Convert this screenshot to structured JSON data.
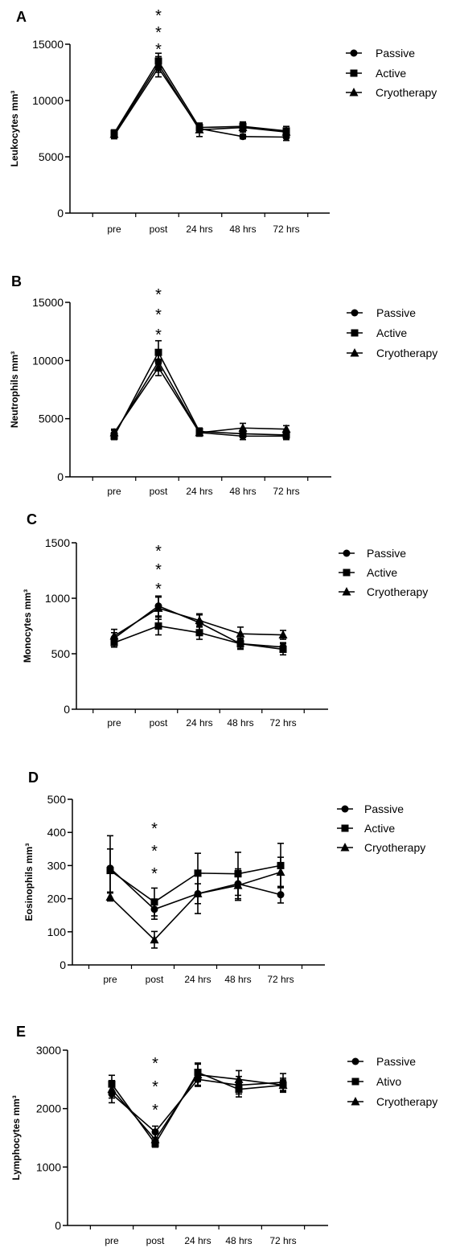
{
  "categories": [
    "pre",
    "post",
    "24 hrs",
    "48 hrs",
    "72 hrs"
  ],
  "chart_data": [
    {
      "type": "line",
      "panel": "A",
      "ylabel": "Leukocytes mm³",
      "ylim": [
        0,
        15000
      ],
      "yticks": [
        0,
        5000,
        10000,
        15000
      ],
      "categories": [
        "pre",
        "post",
        "24 hrs",
        "48 hrs",
        "72 hrs"
      ],
      "series": [
        {
          "name": "Passive",
          "marker": "circle",
          "values": [
            6900,
            12900,
            7500,
            6800,
            6750
          ],
          "error": [
            300,
            800,
            300,
            200,
            300
          ]
        },
        {
          "name": "Active",
          "marker": "square",
          "values": [
            7100,
            13500,
            7600,
            7700,
            7300
          ],
          "error": [
            300,
            700,
            300,
            400,
            400
          ]
        },
        {
          "name": "Cryotherapy",
          "marker": "triangle",
          "values": [
            7000,
            13200,
            7400,
            7600,
            7200
          ],
          "error": [
            300,
            700,
            600,
            400,
            300
          ]
        }
      ],
      "significance": {
        "category": "post",
        "label": "***"
      },
      "legend": "right"
    },
    {
      "type": "line",
      "panel": "B",
      "ylabel": "Neutrophils mm³",
      "ylim": [
        0,
        15000
      ],
      "yticks": [
        0,
        5000,
        10000,
        15000
      ],
      "categories": [
        "pre",
        "post",
        "24 hrs",
        "48 hrs",
        "72 hrs"
      ],
      "series": [
        {
          "name": "Passive",
          "marker": "circle",
          "values": [
            3700,
            9900,
            3800,
            3500,
            3500
          ],
          "error": [
            300,
            800,
            300,
            300,
            300
          ]
        },
        {
          "name": "Active",
          "marker": "square",
          "values": [
            3500,
            10700,
            3900,
            3700,
            3600
          ],
          "error": [
            300,
            1000,
            300,
            300,
            300
          ]
        },
        {
          "name": "Cryotherapy",
          "marker": "triangle",
          "values": [
            3800,
            9400,
            3800,
            4200,
            4100
          ],
          "error": [
            300,
            700,
            300,
            400,
            300
          ]
        }
      ],
      "significance": {
        "category": "post",
        "label": "***"
      },
      "legend": "right"
    },
    {
      "type": "line",
      "panel": "C",
      "ylabel": "Monocytes mm³",
      "ylim": [
        0,
        1500
      ],
      "yticks": [
        0,
        500,
        1000,
        1500
      ],
      "categories": [
        "pre",
        "post",
        "24 hrs",
        "48 hrs",
        "72 hrs"
      ],
      "series": [
        {
          "name": "Passive",
          "marker": "circle",
          "values": [
            640,
            930,
            780,
            590,
            560
          ],
          "error": [
            50,
            90,
            70,
            40,
            40
          ]
        },
        {
          "name": "Active",
          "marker": "square",
          "values": [
            600,
            750,
            690,
            590,
            540
          ],
          "error": [
            40,
            80,
            60,
            50,
            50
          ]
        },
        {
          "name": "Cryotherapy",
          "marker": "triangle",
          "values": [
            660,
            910,
            800,
            680,
            670
          ],
          "error": [
            60,
            100,
            60,
            60,
            40
          ]
        }
      ],
      "significance": {
        "category": "post",
        "label": "***"
      },
      "legend": "right"
    },
    {
      "type": "line",
      "panel": "D",
      "ylabel": "Eosinophils mm³",
      "ylim": [
        0,
        500
      ],
      "yticks": [
        0,
        100,
        200,
        300,
        400,
        500
      ],
      "categories": [
        "pre",
        "post",
        "24 hrs",
        "48 hrs",
        "72 hrs"
      ],
      "series": [
        {
          "name": "Passive",
          "marker": "circle",
          "values": [
            292,
            168,
            215,
            245,
            212
          ],
          "error": [
            98,
            30,
            60,
            45,
            25
          ]
        },
        {
          "name": "Active",
          "marker": "square",
          "values": [
            285,
            190,
            277,
            275,
            300
          ],
          "error": [
            65,
            42,
            60,
            65,
            67
          ]
        },
        {
          "name": "Cryotherapy",
          "marker": "triangle",
          "values": [
            205,
            76,
            215,
            240,
            280
          ],
          "error": [
            12,
            25,
            30,
            45,
            45
          ]
        }
      ],
      "significance": {
        "category": "post",
        "label": "***"
      },
      "legend": "right"
    },
    {
      "type": "line",
      "panel": "E",
      "ylabel": "Lymphocytes mm³",
      "ylim": [
        0,
        3000
      ],
      "yticks": [
        0,
        1000,
        2000,
        3000
      ],
      "categories": [
        "pre",
        "post",
        "24 hrs",
        "48 hrs",
        "72 hrs"
      ],
      "series": [
        {
          "name": "Passive",
          "marker": "circle",
          "values": [
            2250,
            1600,
            2500,
            2400,
            2450
          ],
          "error": [
            150,
            100,
            120,
            150,
            150
          ]
        },
        {
          "name": "Ativo",
          "marker": "square",
          "values": [
            2420,
            1400,
            2620,
            2330,
            2400
          ],
          "error": [
            150,
            60,
            160,
            130,
            90
          ]
        },
        {
          "name": "Cryotherapy",
          "marker": "triangle",
          "values": [
            2330,
            1470,
            2580,
            2500,
            2400
          ],
          "error": [
            150,
            120,
            180,
            150,
            120
          ]
        }
      ],
      "significance": {
        "category": "post",
        "label": "***"
      },
      "legend": "right"
    }
  ]
}
